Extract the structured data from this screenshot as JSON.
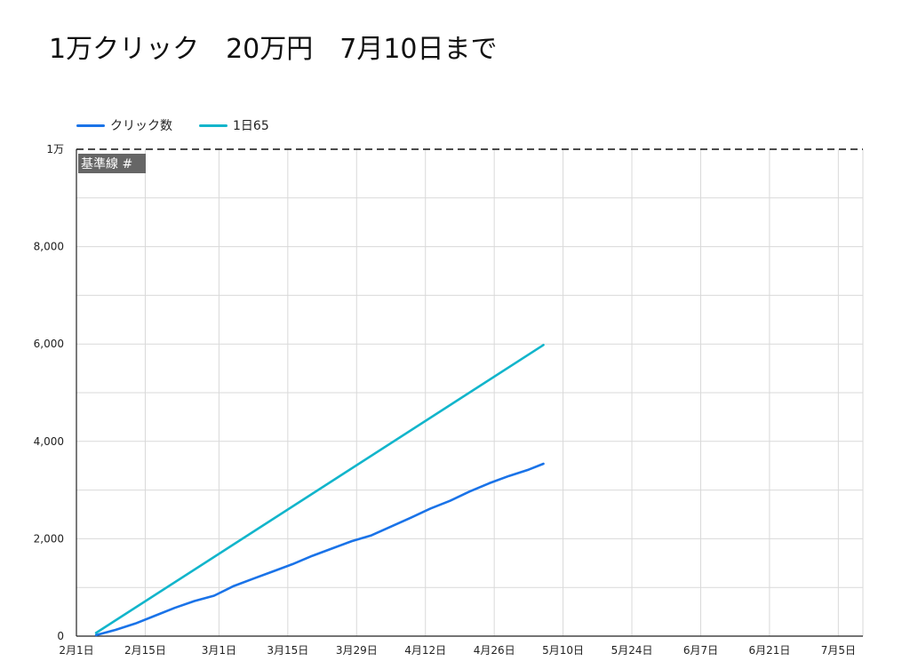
{
  "title": "1万クリック　20万円　7月10日まで",
  "colors": {
    "clicks": "#1a73e8",
    "target": "#12b5cb",
    "grid": "#d9d9d9",
    "axis": "#222222",
    "reference": "#111111",
    "reference_label_bg": "#666666"
  },
  "chart_data": {
    "type": "line",
    "legend_position": "top-left",
    "grid": true,
    "ylim": [
      0,
      10000
    ],
    "xlim": [
      "2020-02-01",
      "2020-07-10"
    ],
    "y_ticks": [
      {
        "value": 0,
        "label": "0"
      },
      {
        "value": 2000,
        "label": "2,000"
      },
      {
        "value": 4000,
        "label": "4,000"
      },
      {
        "value": 6000,
        "label": "6,000"
      },
      {
        "value": 8000,
        "label": "8,000"
      },
      {
        "value": 10000,
        "label": "1万"
      }
    ],
    "y_minor_gridlines": [
      1000,
      3000,
      5000,
      7000,
      9000
    ],
    "x_ticks": [
      {
        "value": "2020-02-01",
        "label": "2月1日"
      },
      {
        "value": "2020-02-15",
        "label": "2月15日"
      },
      {
        "value": "2020-03-01",
        "label": "3月1日"
      },
      {
        "value": "2020-03-15",
        "label": "3月15日"
      },
      {
        "value": "2020-03-29",
        "label": "3月29日"
      },
      {
        "value": "2020-04-12",
        "label": "4月12日"
      },
      {
        "value": "2020-04-26",
        "label": "4月26日"
      },
      {
        "value": "2020-05-10",
        "label": "5月10日"
      },
      {
        "value": "2020-05-24",
        "label": "5月24日"
      },
      {
        "value": "2020-06-07",
        "label": "6月7日"
      },
      {
        "value": "2020-06-21",
        "label": "6月21日"
      },
      {
        "value": "2020-07-05",
        "label": "7月5日"
      }
    ],
    "reference_line": {
      "value": 10000,
      "label": "基準線 #"
    },
    "series": [
      {
        "name": "クリック数",
        "color": "#1a73e8",
        "points": [
          {
            "x": "2020-02-05",
            "y": 20
          },
          {
            "x": "2020-02-09",
            "y": 130
          },
          {
            "x": "2020-02-13",
            "y": 260
          },
          {
            "x": "2020-02-17",
            "y": 420
          },
          {
            "x": "2020-02-21",
            "y": 580
          },
          {
            "x": "2020-02-25",
            "y": 720
          },
          {
            "x": "2020-02-29",
            "y": 830
          },
          {
            "x": "2020-03-04",
            "y": 1030
          },
          {
            "x": "2020-03-08",
            "y": 1180
          },
          {
            "x": "2020-03-12",
            "y": 1330
          },
          {
            "x": "2020-03-16",
            "y": 1480
          },
          {
            "x": "2020-03-20",
            "y": 1650
          },
          {
            "x": "2020-03-24",
            "y": 1800
          },
          {
            "x": "2020-03-28",
            "y": 1950
          },
          {
            "x": "2020-04-01",
            "y": 2070
          },
          {
            "x": "2020-04-05",
            "y": 2250
          },
          {
            "x": "2020-04-09",
            "y": 2430
          },
          {
            "x": "2020-04-13",
            "y": 2620
          },
          {
            "x": "2020-04-17",
            "y": 2780
          },
          {
            "x": "2020-04-21",
            "y": 2970
          },
          {
            "x": "2020-04-25",
            "y": 3140
          },
          {
            "x": "2020-04-29",
            "y": 3290
          },
          {
            "x": "2020-05-03",
            "y": 3420
          },
          {
            "x": "2020-05-06",
            "y": 3540
          }
        ]
      },
      {
        "name": "1日65",
        "color": "#12b5cb",
        "points": [
          {
            "x": "2020-02-05",
            "y": 65
          },
          {
            "x": "2020-05-06",
            "y": 5980
          }
        ]
      }
    ]
  }
}
